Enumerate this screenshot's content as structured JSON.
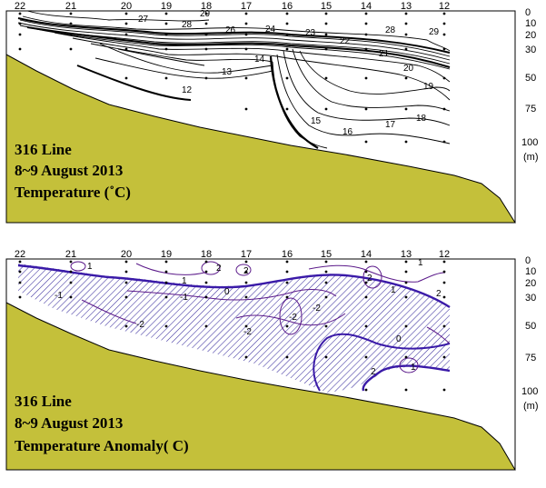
{
  "chart_data": [
    {
      "type": "contour",
      "panel": "top",
      "annotation": [
        "316 Line",
        "8~9 August 2013",
        "Temperature (˚C)"
      ],
      "stations": [
        "22",
        "21",
        "20",
        "19",
        "18",
        "17",
        "16",
        "15",
        "14",
        "13",
        "12"
      ],
      "depth_ticks": [
        "0",
        "10",
        "20",
        "30",
        "50",
        "75",
        "100"
      ],
      "depth_unit": "(m)",
      "contour_labels": [
        "27",
        "29",
        "28",
        "26",
        "24",
        "23",
        "22",
        "28",
        "29",
        "21",
        "20",
        "19",
        "14",
        "13",
        "12",
        "15",
        "16",
        "17",
        "18"
      ],
      "colors": {
        "seafloor": "#c4c03a",
        "contour": "#000000",
        "frame": "#000000"
      }
    },
    {
      "type": "contour",
      "panel": "bottom",
      "annotation": [
        "316 Line",
        "8~9 August 2013",
        "Temperature Anomaly( C)"
      ],
      "stations": [
        "22",
        "21",
        "20",
        "19",
        "18",
        "17",
        "16",
        "15",
        "14",
        "13",
        "12"
      ],
      "depth_ticks": [
        "0",
        "10",
        "20",
        "30",
        "50",
        "75",
        "100"
      ],
      "depth_unit": "(m)",
      "contour_labels": [
        "1",
        "2",
        "2",
        "2",
        "1",
        "0",
        "-1",
        "-2",
        "-2",
        "-2",
        "-2",
        "-1",
        "2",
        "1",
        "1",
        "2",
        "0",
        "1"
      ],
      "colors": {
        "seafloor": "#c4c03a",
        "contour": "#5b1a8a",
        "zero_line": "#3a1aa8",
        "hatch": "#3a2e9e",
        "frame": "#000000"
      }
    }
  ]
}
